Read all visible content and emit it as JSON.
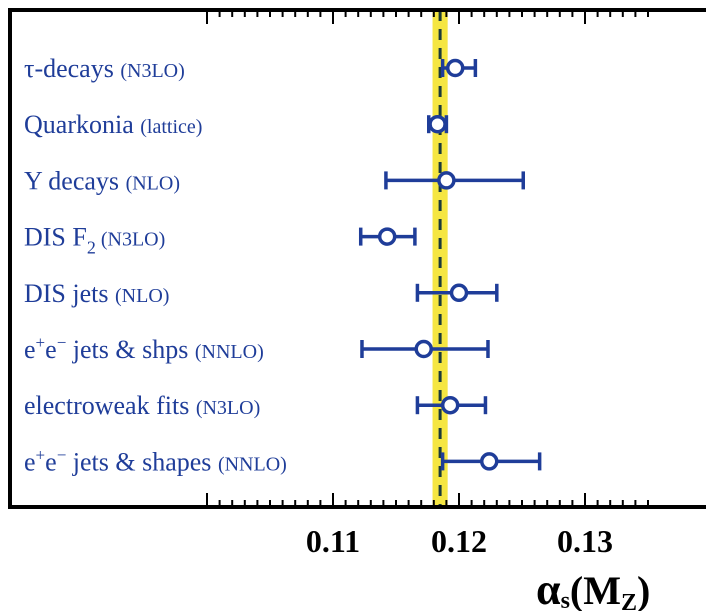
{
  "chart_data": {
    "type": "scatter",
    "title": "",
    "xlabel": "αs(MZ)",
    "xlabel_main": "α",
    "xlabel_sub1": "s",
    "xlabel_paren_open": "(M",
    "xlabel_sub2": "Z",
    "xlabel_paren_close": ")",
    "xlim": [
      0.1,
      0.135
    ],
    "xticks": [
      0.11,
      0.12,
      0.13
    ],
    "xtick_labels": [
      "0.11",
      "0.12",
      "0.13"
    ],
    "band": {
      "center": 0.1185,
      "low": 0.1179,
      "high": 0.1191,
      "color": "#f5e642",
      "line_color": "#1a3a3a"
    },
    "marker_color": "#1f3d99",
    "grid": false,
    "legend": "none",
    "points": [
      {
        "label": [
          "τ-decays ",
          "(N3LO)"
        ],
        "value": 0.1197,
        "err_low": 0.1187,
        "err_high": 0.1213
      },
      {
        "label": [
          "Quarkonia ",
          "(lattice)"
        ],
        "value": 0.1183,
        "err_low": 0.1176,
        "err_high": 0.119
      },
      {
        "label": [
          "Υ decays ",
          "(NLO)"
        ],
        "value": 0.119,
        "err_low": 0.1142,
        "err_high": 0.1251
      },
      {
        "label": [
          "DIS  F",
          "2",
          " (N3LO)"
        ],
        "value": 0.1143,
        "err_low": 0.1122,
        "err_high": 0.1165
      },
      {
        "label": [
          "DIS  jets ",
          "(NLO)"
        ],
        "value": 0.12,
        "err_low": 0.1167,
        "err_high": 0.123
      },
      {
        "label": [
          "e",
          "+",
          "e",
          "−",
          " jets & shps ",
          "(NNLO)"
        ],
        "value": 0.1172,
        "err_low": 0.1123,
        "err_high": 0.1223
      },
      {
        "label": [
          "electroweak fits ",
          "(N3LO)"
        ],
        "value": 0.1193,
        "err_low": 0.1167,
        "err_high": 0.1221
      },
      {
        "label": [
          "e",
          "+",
          "e",
          "−",
          " jets & shapes ",
          "(NNLO)"
        ],
        "value": 0.1224,
        "err_low": 0.1187,
        "err_high": 0.1264
      }
    ]
  }
}
